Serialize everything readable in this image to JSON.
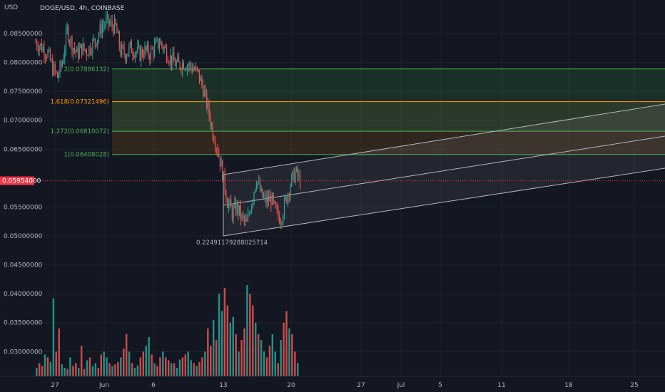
{
  "header": {
    "currency": "USD",
    "symbol_line": "DOGE/USD, 4h, COINBASE"
  },
  "colors": {
    "background": "#131722",
    "up": "#26a69a",
    "down": "#ef5350",
    "grid": "#1e222d",
    "fib_green": "#4caf50",
    "fib_orange": "#ff9800",
    "channel": "#b2b5be",
    "last_price_bg": "#f23645"
  },
  "chart_data": {
    "type": "candlestick",
    "symbol": "DOGE/USD",
    "interval": "4h",
    "exchange": "COINBASE",
    "y_axis_ticks": [
      "0.08500000",
      "0.08000000",
      "0.07500000",
      "0.07000000",
      "0.06500000",
      "0.05500000",
      "0.05000000",
      "0.04500000",
      "0.04000000",
      "0.03500000",
      "0.03000000"
    ],
    "y_tick_values": [
      0.085,
      0.08,
      0.075,
      0.07,
      0.065,
      0.055,
      0.05,
      0.045,
      0.04,
      0.035,
      0.03
    ],
    "x_axis_ticks": [
      "27",
      "Jun",
      "6",
      "13",
      "20",
      "27",
      "Jul",
      "5",
      "11",
      "18",
      "25"
    ],
    "last_price": "0.05954000",
    "last_price_value": 0.05954,
    "fib_levels": [
      {
        "label": "2(0.07886132)",
        "value": 0.07886132,
        "color": "#4caf50"
      },
      {
        "label": "1.618(0.07321496)",
        "value": 0.07321496,
        "color": "#ff9800"
      },
      {
        "label": "1.272(0.06810072)",
        "value": 0.06810072,
        "color": "#4caf50"
      },
      {
        "label": "1(0.06408028)",
        "value": 0.06408028,
        "color": "#4caf50"
      }
    ],
    "annotation": "0.22491179288025714",
    "price_path": [
      {
        "x": 0,
        "y": 0.0835
      },
      {
        "x": 6,
        "y": 0.0825
      },
      {
        "x": 10,
        "y": 0.0815
      },
      {
        "x": 14,
        "y": 0.079
      },
      {
        "x": 18,
        "y": 0.0775
      },
      {
        "x": 22,
        "y": 0.08
      },
      {
        "x": 26,
        "y": 0.0855
      },
      {
        "x": 30,
        "y": 0.083
      },
      {
        "x": 34,
        "y": 0.0815
      },
      {
        "x": 38,
        "y": 0.0825
      },
      {
        "x": 42,
        "y": 0.082
      },
      {
        "x": 46,
        "y": 0.083
      },
      {
        "x": 50,
        "y": 0.084
      },
      {
        "x": 54,
        "y": 0.086
      },
      {
        "x": 58,
        "y": 0.087
      },
      {
        "x": 62,
        "y": 0.0865
      },
      {
        "x": 66,
        "y": 0.086
      },
      {
        "x": 70,
        "y": 0.082
      },
      {
        "x": 74,
        "y": 0.0815
      },
      {
        "x": 78,
        "y": 0.0825
      },
      {
        "x": 82,
        "y": 0.082
      },
      {
        "x": 86,
        "y": 0.0815
      },
      {
        "x": 90,
        "y": 0.082
      },
      {
        "x": 94,
        "y": 0.0815
      },
      {
        "x": 98,
        "y": 0.0825
      },
      {
        "x": 102,
        "y": 0.0835
      },
      {
        "x": 106,
        "y": 0.0825
      },
      {
        "x": 110,
        "y": 0.081
      },
      {
        "x": 114,
        "y": 0.08
      },
      {
        "x": 118,
        "y": 0.0795
      },
      {
        "x": 122,
        "y": 0.08
      },
      {
        "x": 126,
        "y": 0.0795
      },
      {
        "x": 130,
        "y": 0.079
      },
      {
        "x": 134,
        "y": 0.078
      },
      {
        "x": 138,
        "y": 0.0755
      },
      {
        "x": 142,
        "y": 0.072
      },
      {
        "x": 146,
        "y": 0.068
      },
      {
        "x": 150,
        "y": 0.065
      },
      {
        "x": 154,
        "y": 0.061
      },
      {
        "x": 158,
        "y": 0.056
      },
      {
        "x": 162,
        "y": 0.054
      },
      {
        "x": 166,
        "y": 0.055
      },
      {
        "x": 170,
        "y": 0.053
      },
      {
        "x": 174,
        "y": 0.052
      },
      {
        "x": 178,
        "y": 0.056
      },
      {
        "x": 182,
        "y": 0.06
      },
      {
        "x": 186,
        "y": 0.057
      },
      {
        "x": 190,
        "y": 0.056
      },
      {
        "x": 194,
        "y": 0.0565
      },
      {
        "x": 198,
        "y": 0.054
      },
      {
        "x": 202,
        "y": 0.053
      },
      {
        "x": 206,
        "y": 0.056
      },
      {
        "x": 210,
        "y": 0.059
      },
      {
        "x": 214,
        "y": 0.061
      },
      {
        "x": 218,
        "y": 0.0595
      }
    ],
    "volume_values": [
      0.0272,
      0.028,
      0.0275,
      0.0295,
      0.029,
      0.0282,
      0.0392,
      0.03,
      0.034,
      0.0278,
      0.0272,
      0.027,
      0.029,
      0.0275,
      0.028,
      0.0272,
      0.031,
      0.027,
      0.0285,
      0.029,
      0.0275,
      0.028,
      0.0272,
      0.0295,
      0.03,
      0.029,
      0.028,
      0.0275,
      0.0278,
      0.0282,
      0.029,
      0.0305,
      0.033,
      0.03,
      0.028,
      0.0272,
      0.0276,
      0.029,
      0.03,
      0.031,
      0.0325,
      0.0295,
      0.028,
      0.0275,
      0.029,
      0.03,
      0.029,
      0.0285,
      0.028,
      0.028,
      0.0272,
      0.0286,
      0.029,
      0.0295,
      0.03,
      0.0285,
      0.028,
      0.0275,
      0.0282,
      0.029,
      0.03,
      0.034,
      0.031,
      0.0355,
      0.032,
      0.04,
      0.037,
      0.041,
      0.038,
      0.035,
      0.036,
      0.033,
      0.03,
      0.032,
      0.034,
      0.0415,
      0.04,
      0.038,
      0.035,
      0.033,
      0.032,
      0.03,
      0.029,
      0.031,
      0.033,
      0.03,
      0.028,
      0.032,
      0.035,
      0.037,
      0.034,
      0.033,
      0.03,
      0.028
    ]
  }
}
